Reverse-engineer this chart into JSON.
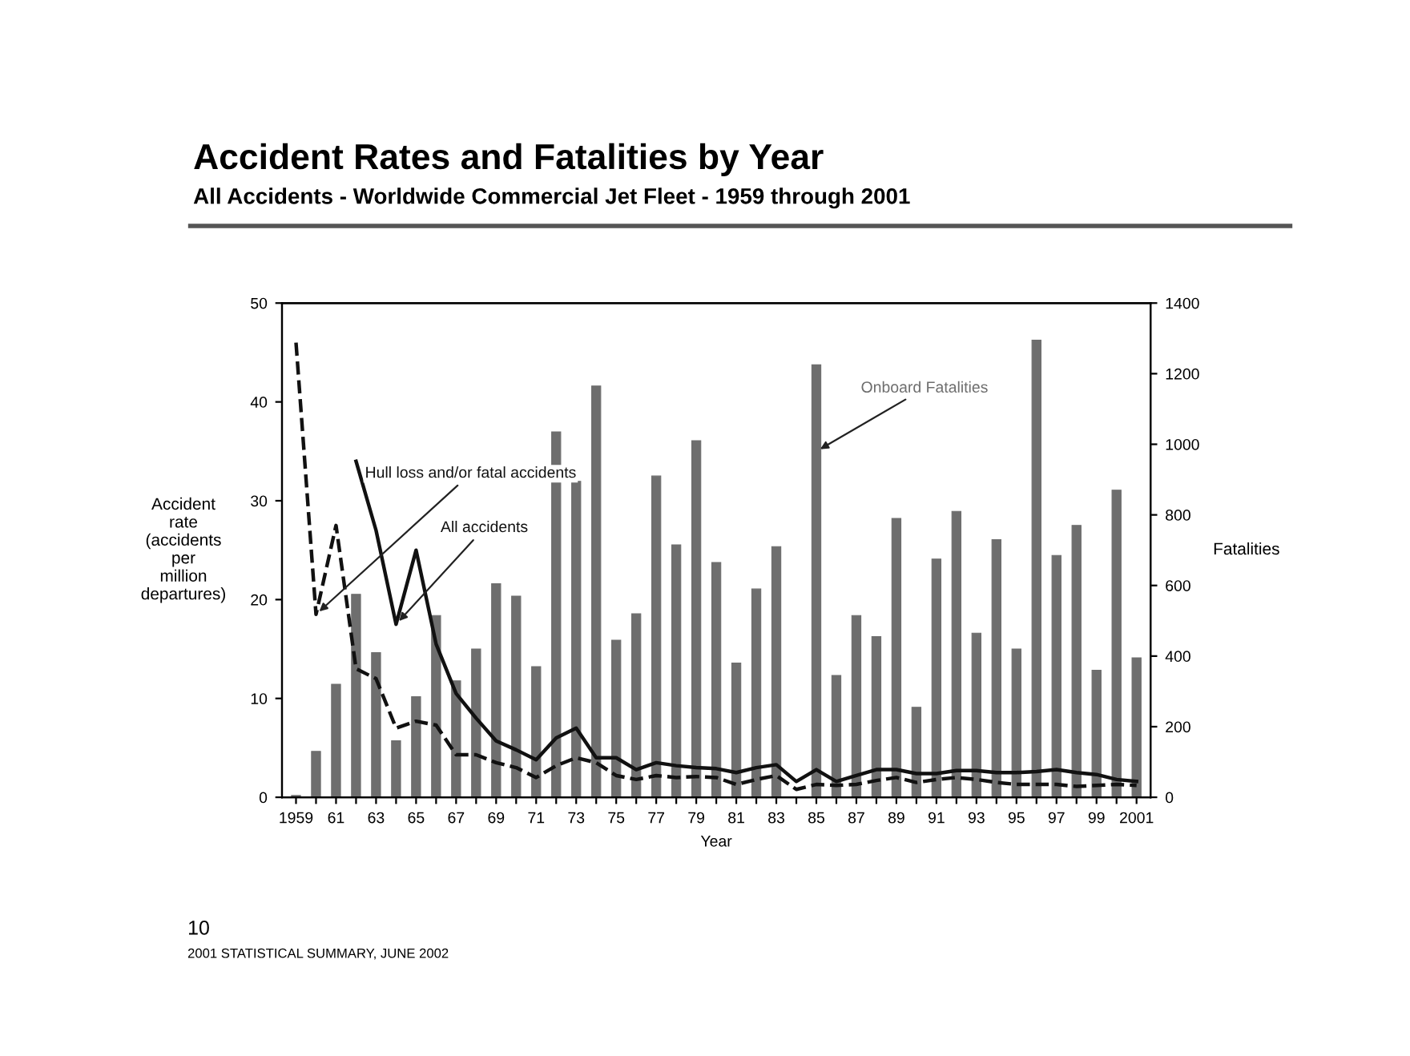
{
  "chart_data": {
    "type": "bar",
    "title": "Accident Rates and Fatalities by Year",
    "subtitle": "All Accidents - Worldwide Commercial Jet Fleet - 1959 through 2001",
    "xlabel": "Year",
    "ylabel": "Accident\nrate\n(accidents\nper\nmillion\ndepartures)",
    "y2label": "Fatalities",
    "categories": [
      "1959",
      null,
      "61",
      null,
      "63",
      null,
      "65",
      null,
      "67",
      null,
      "69",
      null,
      "71",
      null,
      "73",
      null,
      "75",
      null,
      "77",
      null,
      "79",
      null,
      "81",
      null,
      "83",
      null,
      "85",
      null,
      "87",
      null,
      "89",
      null,
      "91",
      null,
      "93",
      null,
      "95",
      null,
      "97",
      null,
      "99",
      null,
      "2001"
    ],
    "series": [
      {
        "name": "Onboard Fatalities",
        "axis": "y2",
        "color": "#6e6e6e",
        "values": [
          5,
          130,
          320,
          575,
          410,
          160,
          285,
          515,
          330,
          420,
          605,
          570,
          370,
          1035,
          895,
          1165,
          445,
          520,
          910,
          715,
          1010,
          665,
          380,
          590,
          710,
          0,
          1225,
          345,
          515,
          455,
          790,
          255,
          675,
          810,
          465,
          730,
          420,
          1295,
          685,
          770,
          360,
          870,
          395
        ]
      },
      {
        "name": "Hull loss and/or fatal accidents",
        "type": "line",
        "line_style": "dashed",
        "color": "#111111",
        "values": [
          46,
          18.5,
          27.5,
          13,
          12,
          7,
          7.7,
          7.3,
          4.3,
          4.3,
          3.5,
          3,
          2,
          3.2,
          4,
          3.5,
          2.2,
          1.8,
          2.2,
          2,
          2.1,
          2.0,
          1.3,
          1.8,
          2.2,
          0.8,
          1.3,
          1.2,
          1.3,
          1.7,
          2.0,
          1.5,
          1.8,
          2.0,
          1.8,
          1.5,
          1.3,
          1.3,
          1.3,
          1.1,
          1.2,
          1.3,
          1.2
        ]
      },
      {
        "name": "All accidents",
        "type": "line",
        "line_style": "solid",
        "color": "#111111",
        "values": [
          null,
          null,
          null,
          34,
          27,
          17.5,
          25,
          15.5,
          10.5,
          8,
          5.7,
          4.8,
          3.8,
          6,
          7,
          4,
          4,
          2.8,
          3.5,
          3.2,
          3.0,
          2.9,
          2.5,
          3.0,
          3.3,
          1.6,
          2.8,
          1.6,
          2.2,
          2.8,
          2.8,
          2.4,
          2.4,
          2.7,
          2.7,
          2.5,
          2.5,
          2.6,
          2.8,
          2.5,
          2.3,
          1.8,
          1.6
        ]
      }
    ],
    "ylim": [
      0,
      50
    ],
    "yticks": [
      0,
      10,
      20,
      30,
      40,
      50
    ],
    "y2lim": [
      0,
      1400
    ],
    "y2ticks": [
      0,
      200,
      400,
      600,
      800,
      1000,
      1200,
      1400
    ],
    "grid": false,
    "legend": false,
    "annotations": [
      "10",
      "2001 STATISTICAL SUMMARY, JUNE 2002"
    ]
  }
}
